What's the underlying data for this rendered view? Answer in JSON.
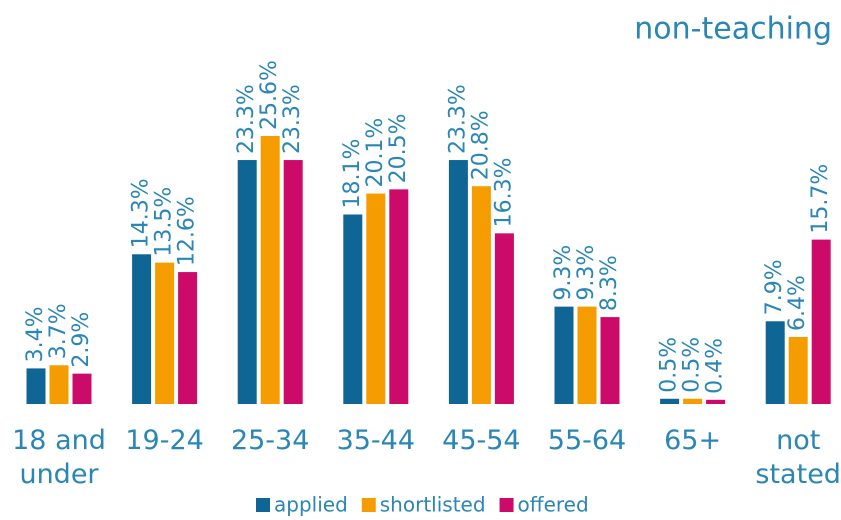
{
  "chart_data": {
    "type": "bar",
    "title": "non-teaching",
    "categories": [
      "18 and under",
      "19-24",
      "25-34",
      "35-44",
      "45-54",
      "55-64",
      "65+",
      "not stated"
    ],
    "series": [
      {
        "name": "applied",
        "color": "#0f6593",
        "values": [
          3.4,
          14.3,
          23.3,
          18.1,
          23.3,
          9.3,
          0.5,
          7.9
        ],
        "value_labels": [
          "3.4%",
          "14.3%",
          "23.3%",
          "18.1%",
          "23.3%",
          "9.3%",
          "0.5%",
          "7.9%"
        ]
      },
      {
        "name": "shortlisted",
        "color": "#f59c00",
        "values": [
          3.7,
          13.5,
          25.6,
          20.1,
          20.8,
          9.3,
          0.5,
          6.4
        ],
        "value_labels": [
          "3.7%",
          "13.5%",
          "25.6%",
          "20.1%",
          "20.8%",
          "9.3%",
          "0.5%",
          "6.4%"
        ]
      },
      {
        "name": "offered",
        "color": "#cc0a69",
        "values": [
          2.9,
          12.6,
          23.3,
          20.5,
          16.3,
          8.3,
          0.4,
          15.7
        ],
        "value_labels": [
          "2.9%",
          "12.6%",
          "23.3%",
          "20.5%",
          "16.3%",
          "8.3%",
          "0.4%",
          "15.7%"
        ]
      }
    ]
  }
}
